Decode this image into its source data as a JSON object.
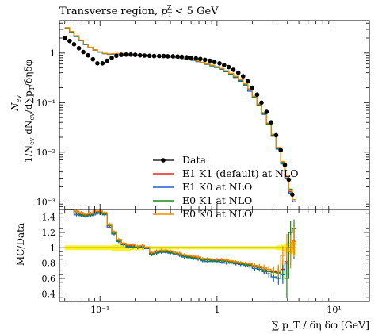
{
  "chart_data": {
    "type": "line",
    "title": "Transverse region, p_T^Z < 5 GeV",
    "xlabel": "∑ p_T / δη δφ [GeV]",
    "x_scale": "log",
    "xlim": [
      0.045,
      20
    ],
    "legend_position": "bottom-center",
    "main": {
      "ylabel": "1/N_ev dN_ev / d∑p_T/δηδφ",
      "y_scale": "log",
      "ylim": [
        0.0007,
        4.5
      ],
      "x_tick_labels": [],
      "y_tick_labels": [
        "10⁻³",
        "10⁻²",
        "10⁻¹",
        "1"
      ],
      "y_tick_values": [
        0.001,
        0.01,
        0.1,
        1
      ],
      "data": {
        "name": "Data",
        "color": "#000000",
        "x": [
          0.05,
          0.055,
          0.06,
          0.066,
          0.072,
          0.079,
          0.087,
          0.095,
          0.105,
          0.115,
          0.126,
          0.138,
          0.152,
          0.167,
          0.183,
          0.2,
          0.22,
          0.24,
          0.265,
          0.29,
          0.32,
          0.35,
          0.38,
          0.42,
          0.46,
          0.5,
          0.55,
          0.6,
          0.66,
          0.72,
          0.79,
          0.87,
          0.95,
          1.05,
          1.15,
          1.26,
          1.38,
          1.52,
          1.67,
          1.83,
          2.0,
          2.2,
          2.4,
          2.65,
          2.9,
          3.2,
          3.5,
          3.8,
          4.1,
          4.4
        ],
        "y": [
          2.0,
          1.75,
          1.5,
          1.25,
          1.05,
          0.9,
          0.75,
          0.62,
          0.62,
          0.7,
          0.8,
          0.88,
          0.92,
          0.93,
          0.93,
          0.92,
          0.9,
          0.89,
          0.88,
          0.87,
          0.87,
          0.87,
          0.86,
          0.86,
          0.85,
          0.84,
          0.82,
          0.8,
          0.78,
          0.76,
          0.73,
          0.7,
          0.66,
          0.62,
          0.57,
          0.52,
          0.46,
          0.4,
          0.34,
          0.27,
          0.2,
          0.145,
          0.1,
          0.065,
          0.04,
          0.022,
          0.011,
          0.0055,
          0.0028,
          0.0014
        ]
      },
      "series": [
        {
          "name": "E1 K1 (default) at NLO",
          "color": "#e8231c",
          "edges": [
            0.05,
            0.055,
            0.06,
            0.066,
            0.072,
            0.079,
            0.087,
            0.095,
            0.105,
            0.115,
            0.126,
            0.138,
            0.152,
            0.167,
            0.183,
            0.2,
            0.22,
            0.24,
            0.265,
            0.29,
            0.32,
            0.35,
            0.38,
            0.42,
            0.46,
            0.5,
            0.55,
            0.6,
            0.66,
            0.72,
            0.79,
            0.87,
            0.95,
            1.05,
            1.15,
            1.26,
            1.38,
            1.52,
            1.67,
            1.83,
            2.0,
            2.2,
            2.4,
            2.65,
            2.9,
            3.2,
            3.5,
            3.8,
            4.1,
            4.4,
            4.7
          ],
          "values": [
            3.2,
            2.7,
            2.2,
            1.8,
            1.5,
            1.3,
            1.15,
            1.05,
            0.98,
            0.95,
            0.96,
            0.97,
            0.97,
            0.96,
            0.95,
            0.93,
            0.92,
            0.9,
            0.88,
            0.87,
            0.86,
            0.85,
            0.84,
            0.82,
            0.8,
            0.78,
            0.75,
            0.72,
            0.68,
            0.64,
            0.6,
            0.56,
            0.52,
            0.48,
            0.43,
            0.38,
            0.33,
            0.28,
            0.23,
            0.18,
            0.13,
            0.09,
            0.06,
            0.037,
            0.022,
            0.012,
            0.006,
            0.003,
            0.0016,
            0.001
          ]
        },
        {
          "name": "E1 K0 at NLO",
          "color": "#1f5fd6",
          "edges": [
            0.05,
            0.055,
            0.06,
            0.066,
            0.072,
            0.079,
            0.087,
            0.095,
            0.105,
            0.115,
            0.126,
            0.138,
            0.152,
            0.167,
            0.183,
            0.2,
            0.22,
            0.24,
            0.265,
            0.29,
            0.32,
            0.35,
            0.38,
            0.42,
            0.46,
            0.5,
            0.55,
            0.6,
            0.66,
            0.72,
            0.79,
            0.87,
            0.95,
            1.05,
            1.15,
            1.26,
            1.38,
            1.52,
            1.67,
            1.83,
            2.0,
            2.2,
            2.4,
            2.65,
            2.9,
            3.2,
            3.5,
            3.8,
            4.1,
            4.4,
            4.7
          ],
          "values": [
            3.1,
            2.65,
            2.15,
            1.78,
            1.48,
            1.28,
            1.14,
            1.04,
            0.97,
            0.94,
            0.95,
            0.96,
            0.96,
            0.95,
            0.94,
            0.92,
            0.91,
            0.89,
            0.87,
            0.86,
            0.85,
            0.84,
            0.83,
            0.81,
            0.79,
            0.77,
            0.74,
            0.71,
            0.67,
            0.63,
            0.59,
            0.55,
            0.51,
            0.47,
            0.42,
            0.37,
            0.32,
            0.27,
            0.22,
            0.17,
            0.125,
            0.087,
            0.058,
            0.036,
            0.021,
            0.0115,
            0.0058,
            0.0029,
            0.0015,
            0.001
          ]
        },
        {
          "name": "E0 K1 at NLO",
          "color": "#1a8a1a",
          "edges": [
            0.05,
            0.055,
            0.06,
            0.066,
            0.072,
            0.079,
            0.087,
            0.095,
            0.105,
            0.115,
            0.126,
            0.138,
            0.152,
            0.167,
            0.183,
            0.2,
            0.22,
            0.24,
            0.265,
            0.29,
            0.32,
            0.35,
            0.38,
            0.42,
            0.46,
            0.5,
            0.55,
            0.6,
            0.66,
            0.72,
            0.79,
            0.87,
            0.95,
            1.05,
            1.15,
            1.26,
            1.38,
            1.52,
            1.67,
            1.83,
            2.0,
            2.2,
            2.4,
            2.65,
            2.9,
            3.2,
            3.5,
            3.8,
            4.1,
            4.4,
            4.7
          ],
          "values": [
            3.15,
            2.68,
            2.18,
            1.79,
            1.49,
            1.29,
            1.15,
            1.05,
            0.98,
            0.95,
            0.96,
            0.97,
            0.97,
            0.96,
            0.95,
            0.93,
            0.92,
            0.9,
            0.88,
            0.87,
            0.86,
            0.85,
            0.84,
            0.82,
            0.8,
            0.78,
            0.75,
            0.72,
            0.68,
            0.64,
            0.6,
            0.56,
            0.52,
            0.48,
            0.43,
            0.38,
            0.33,
            0.28,
            0.23,
            0.18,
            0.13,
            0.09,
            0.06,
            0.037,
            0.022,
            0.012,
            0.0062,
            0.0032,
            0.0018,
            0.0011
          ]
        },
        {
          "name": "E0 K0 at NLO",
          "color": "#f08a00",
          "edges": [
            0.05,
            0.055,
            0.06,
            0.066,
            0.072,
            0.079,
            0.087,
            0.095,
            0.105,
            0.115,
            0.126,
            0.138,
            0.152,
            0.167,
            0.183,
            0.2,
            0.22,
            0.24,
            0.265,
            0.29,
            0.32,
            0.35,
            0.38,
            0.42,
            0.46,
            0.5,
            0.55,
            0.6,
            0.66,
            0.72,
            0.79,
            0.87,
            0.95,
            1.05,
            1.15,
            1.26,
            1.38,
            1.52,
            1.67,
            1.83,
            2.0,
            2.2,
            2.4,
            2.65,
            2.9,
            3.2,
            3.5,
            3.8,
            4.1,
            4.4,
            4.7
          ],
          "values": [
            3.25,
            2.72,
            2.22,
            1.82,
            1.51,
            1.31,
            1.16,
            1.06,
            0.99,
            0.96,
            0.97,
            0.98,
            0.98,
            0.97,
            0.96,
            0.94,
            0.93,
            0.91,
            0.89,
            0.88,
            0.87,
            0.86,
            0.85,
            0.83,
            0.81,
            0.79,
            0.76,
            0.73,
            0.69,
            0.65,
            0.61,
            0.57,
            0.53,
            0.49,
            0.44,
            0.39,
            0.34,
            0.29,
            0.24,
            0.19,
            0.135,
            0.094,
            0.063,
            0.039,
            0.023,
            0.0125,
            0.0065,
            0.0033,
            0.0017,
            0.0011
          ]
        }
      ]
    },
    "ratio": {
      "ylabel": "MC/Data",
      "ylim": [
        0.3,
        1.5
      ],
      "x_tick_labels": [
        "10⁻¹",
        "1",
        "10¹"
      ],
      "x_tick_values": [
        0.1,
        1,
        10
      ],
      "y_tick_labels": [
        "0.4",
        "0.6",
        "0.8",
        "1",
        "1.2",
        "1.4"
      ],
      "y_tick_values": [
        0.4,
        0.6,
        0.8,
        1.0,
        1.2,
        1.4
      ],
      "band_color": "#f5f000",
      "band_halfwidth": [
        0.03,
        0.03,
        0.03,
        0.03,
        0.03,
        0.03,
        0.03,
        0.03,
        0.03,
        0.03,
        0.04,
        0.04,
        0.04,
        0.04,
        0.03,
        0.03,
        0.03,
        0.02,
        0.02,
        0.02,
        0.02,
        0.02,
        0.02,
        0.02,
        0.02,
        0.02,
        0.02,
        0.02,
        0.02,
        0.02,
        0.02,
        0.02,
        0.02,
        0.02,
        0.02,
        0.02,
        0.02,
        0.02,
        0.02,
        0.02,
        0.02,
        0.02,
        0.02,
        0.02,
        0.02,
        0.03,
        0.04,
        0.06,
        0.08,
        0.1
      ],
      "series": [
        {
          "name": "E1 K1 (default) at NLO",
          "color": "#e8231c",
          "values": [
            1.6,
            1.54,
            1.47,
            1.44,
            1.43,
            1.44,
            1.47,
            1.47,
            1.45,
            1.3,
            1.2,
            1.1,
            1.05,
            1.03,
            1.03,
            1.01,
            1.02,
            1.0,
            0.93,
            0.95,
            0.96,
            0.96,
            0.95,
            0.93,
            0.92,
            0.9,
            0.89,
            0.88,
            0.87,
            0.85,
            0.85,
            0.84,
            0.84,
            0.84,
            0.83,
            0.82,
            0.81,
            0.8,
            0.79,
            0.78,
            0.76,
            0.75,
            0.72,
            0.7,
            0.69,
            0.68,
            0.72,
            0.82,
            1.05,
            1.1
          ],
          "errors": [
            0.02,
            0.02,
            0.02,
            0.02,
            0.02,
            0.02,
            0.02,
            0.02,
            0.02,
            0.02,
            0.02,
            0.02,
            0.02,
            0.02,
            0.02,
            0.02,
            0.02,
            0.02,
            0.02,
            0.02,
            0.02,
            0.02,
            0.02,
            0.02,
            0.02,
            0.02,
            0.02,
            0.02,
            0.02,
            0.02,
            0.02,
            0.02,
            0.02,
            0.02,
            0.02,
            0.02,
            0.02,
            0.02,
            0.02,
            0.03,
            0.03,
            0.03,
            0.04,
            0.05,
            0.06,
            0.08,
            0.12,
            0.18,
            0.22,
            0.2
          ]
        },
        {
          "name": "E1 K0 at NLO",
          "color": "#1f5fd6",
          "values": [
            1.55,
            1.51,
            1.43,
            1.42,
            1.41,
            1.42,
            1.44,
            1.45,
            1.43,
            1.27,
            1.18,
            1.08,
            1.04,
            1.01,
            1.01,
            1.0,
            1.01,
            0.99,
            0.91,
            0.93,
            0.94,
            0.94,
            0.93,
            0.92,
            0.9,
            0.88,
            0.87,
            0.86,
            0.85,
            0.83,
            0.82,
            0.82,
            0.82,
            0.81,
            0.8,
            0.8,
            0.79,
            0.78,
            0.77,
            0.75,
            0.73,
            0.72,
            0.69,
            0.66,
            0.62,
            0.6,
            0.65,
            0.8,
            1.0,
            1.05
          ],
          "errors": [
            0.02,
            0.02,
            0.02,
            0.02,
            0.02,
            0.02,
            0.02,
            0.02,
            0.02,
            0.02,
            0.02,
            0.02,
            0.02,
            0.02,
            0.02,
            0.02,
            0.02,
            0.02,
            0.02,
            0.02,
            0.02,
            0.02,
            0.02,
            0.02,
            0.02,
            0.02,
            0.02,
            0.02,
            0.02,
            0.02,
            0.02,
            0.02,
            0.02,
            0.02,
            0.02,
            0.02,
            0.02,
            0.02,
            0.02,
            0.03,
            0.03,
            0.03,
            0.04,
            0.05,
            0.06,
            0.08,
            0.12,
            0.18,
            0.22,
            0.2
          ]
        },
        {
          "name": "E0 K1 at NLO",
          "color": "#1a8a1a",
          "values": [
            1.57,
            1.52,
            1.45,
            1.43,
            1.42,
            1.43,
            1.46,
            1.46,
            1.44,
            1.29,
            1.19,
            1.09,
            1.05,
            1.02,
            1.02,
            1.01,
            1.02,
            1.0,
            0.92,
            0.94,
            0.95,
            0.95,
            0.94,
            0.93,
            0.91,
            0.89,
            0.88,
            0.87,
            0.86,
            0.84,
            0.84,
            0.83,
            0.83,
            0.83,
            0.82,
            0.81,
            0.8,
            0.79,
            0.78,
            0.77,
            0.75,
            0.74,
            0.71,
            0.69,
            0.68,
            0.67,
            0.7,
            0.6,
            1.2,
            1.25
          ],
          "errors": [
            0.02,
            0.02,
            0.02,
            0.02,
            0.02,
            0.02,
            0.02,
            0.02,
            0.02,
            0.02,
            0.02,
            0.02,
            0.02,
            0.02,
            0.02,
            0.02,
            0.02,
            0.02,
            0.02,
            0.02,
            0.02,
            0.02,
            0.02,
            0.02,
            0.02,
            0.02,
            0.02,
            0.02,
            0.02,
            0.02,
            0.02,
            0.02,
            0.02,
            0.02,
            0.02,
            0.02,
            0.02,
            0.02,
            0.02,
            0.03,
            0.03,
            0.03,
            0.04,
            0.05,
            0.06,
            0.08,
            0.12,
            0.25,
            0.15,
            0.12
          ]
        },
        {
          "name": "E0 K0 at NLO",
          "color": "#f08a00",
          "values": [
            1.62,
            1.55,
            1.48,
            1.46,
            1.44,
            1.45,
            1.48,
            1.48,
            1.46,
            1.31,
            1.21,
            1.11,
            1.06,
            1.04,
            1.04,
            1.02,
            1.03,
            1.01,
            0.94,
            0.96,
            0.97,
            0.97,
            0.96,
            0.94,
            0.93,
            0.91,
            0.9,
            0.89,
            0.88,
            0.86,
            0.86,
            0.85,
            0.85,
            0.85,
            0.84,
            0.83,
            0.82,
            0.81,
            0.8,
            0.79,
            0.77,
            0.76,
            0.74,
            0.72,
            0.7,
            0.7,
            0.9,
            1.0,
            0.95,
            1.08
          ],
          "errors": [
            0.02,
            0.02,
            0.02,
            0.02,
            0.02,
            0.02,
            0.02,
            0.02,
            0.02,
            0.02,
            0.02,
            0.02,
            0.02,
            0.02,
            0.02,
            0.02,
            0.02,
            0.02,
            0.02,
            0.02,
            0.02,
            0.02,
            0.02,
            0.02,
            0.02,
            0.02,
            0.02,
            0.02,
            0.02,
            0.02,
            0.02,
            0.02,
            0.02,
            0.02,
            0.02,
            0.02,
            0.02,
            0.02,
            0.02,
            0.03,
            0.03,
            0.03,
            0.04,
            0.05,
            0.06,
            0.08,
            0.12,
            0.18,
            0.22,
            0.2
          ]
        }
      ]
    }
  }
}
